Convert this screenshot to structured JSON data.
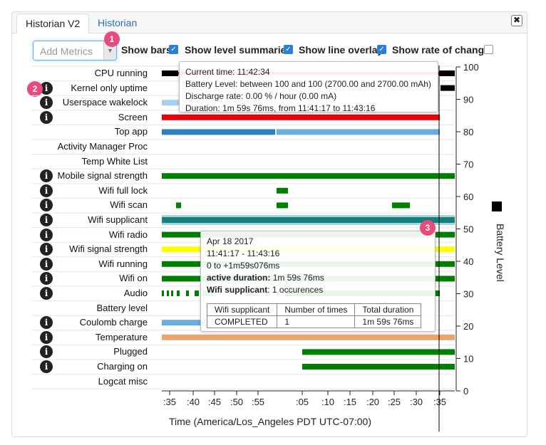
{
  "tabs": {
    "active": "Historian V2",
    "other": "Historian",
    "close_symbol": "✖"
  },
  "toolbar": {
    "add_metrics_placeholder": "Add Metrics",
    "options": [
      {
        "label": "Show bars",
        "checked": true
      },
      {
        "label": "Show level summaries",
        "checked": true
      },
      {
        "label": "Show line overlay",
        "checked": true
      },
      {
        "label": "Show rate of change",
        "checked": false
      }
    ],
    "check_glyph": "✓"
  },
  "badges": [
    "1",
    "2",
    "3"
  ],
  "info_glyph": "i",
  "metrics": [
    {
      "label": "CPU running",
      "info": false
    },
    {
      "label": "Kernel only uptime",
      "info": true
    },
    {
      "label": "Userspace wakelock",
      "info": true
    },
    {
      "label": "Screen",
      "info": true
    },
    {
      "label": "Top app",
      "info": false
    },
    {
      "label": "Activity Manager Proc",
      "info": false
    },
    {
      "label": "Temp White List",
      "info": false
    },
    {
      "label": "Mobile signal strength",
      "info": true
    },
    {
      "label": "Wifi full lock",
      "info": true
    },
    {
      "label": "Wifi scan",
      "info": true
    },
    {
      "label": "Wifi supplicant",
      "info": true
    },
    {
      "label": "Wifi radio",
      "info": true
    },
    {
      "label": "Wifi signal strength",
      "info": true
    },
    {
      "label": "Wifi running",
      "info": true
    },
    {
      "label": "Wifi on",
      "info": true
    },
    {
      "label": "Audio",
      "info": true
    },
    {
      "label": "Battery level",
      "info": false
    },
    {
      "label": "Coulomb charge",
      "info": true
    },
    {
      "label": "Temperature",
      "info": true
    },
    {
      "label": "Plugged",
      "info": true
    },
    {
      "label": "Charging on",
      "info": true
    },
    {
      "label": "Logcat misc",
      "info": false
    }
  ],
  "x_axis": {
    "ticks": [
      ":35",
      ":40",
      ":45",
      ":50",
      ":55",
      ":05",
      ":10",
      ":15",
      ":20",
      ":25",
      ":30",
      ":35"
    ],
    "label": "Time (America/Los_Angeles PDT UTC-07:00)"
  },
  "y_axis": {
    "ticks": [
      "100",
      "90",
      "80",
      "70",
      "60",
      "50",
      "40",
      "30",
      "20",
      "10",
      "0"
    ],
    "label": "Battery Level"
  },
  "tooltip_battery": {
    "lines": [
      "Current time: 11:42:34",
      "Battery Level: between 100 and 100 (2700.00 and 2700.00 mAh)",
      "Discharge rate: 0.00 % / hour (0.00 mA)",
      "Duration: 1m 59s 76ms, from 11:41:17 to 11:43:16"
    ]
  },
  "tooltip_event": {
    "date": "Apr 18 2017",
    "time_range": "11:41:17 - 11:43:16",
    "offset": "0 to +1m59s076ms",
    "active_duration_label": "active duration:",
    "active_duration_value": " 1m 59s 76ms",
    "metric_label": "Wifi supplicant",
    "metric_value": ": 1 occurences",
    "table_headers": [
      "Wifi supplicant",
      "Number of times",
      "Total duration"
    ],
    "table_row": [
      "COMPLETED",
      "1",
      "1m 59s 76ms"
    ]
  },
  "colors": {
    "red": "#e8000b",
    "black": "#000000",
    "green": "#008000",
    "blue": "#2f7fc1",
    "light_blue": "#6aaede",
    "teal": "#138080",
    "yellow": "#ffff00",
    "orange": "#e8a56c",
    "cursor": "#000000"
  }
}
